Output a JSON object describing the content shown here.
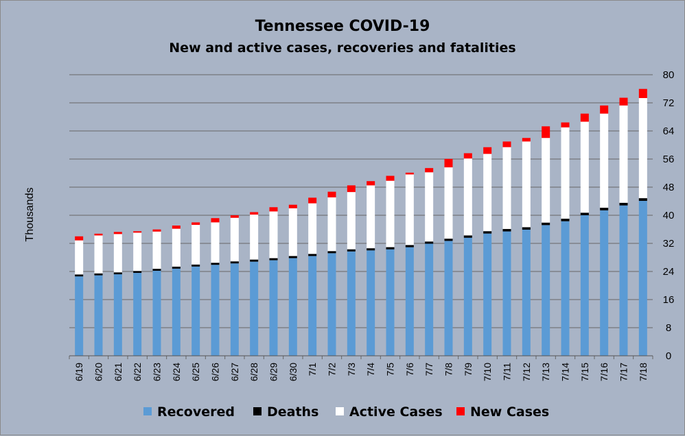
{
  "chart_data": {
    "type": "bar",
    "stacked": true,
    "title": "Tennessee COVID-19",
    "subtitle": "New and active cases, recoveries and fatalities",
    "ylabel": "Thousands",
    "ylim": [
      0,
      80
    ],
    "yticks": [
      0,
      8,
      16,
      24,
      32,
      40,
      48,
      56,
      64,
      72,
      80
    ],
    "y_axis_side": "right",
    "grid": true,
    "legend_position": "bottom",
    "categories": [
      "6/19",
      "6/20",
      "6/21",
      "6/22",
      "6/23",
      "6/24",
      "6/25",
      "6/26",
      "6/27",
      "6/28",
      "6/29",
      "6/30",
      "7/1",
      "7/2",
      "7/3",
      "7/4",
      "7/5",
      "7/6",
      "7/7",
      "7/8",
      "7/9",
      "7/10",
      "7/11",
      "7/12",
      "7/13",
      "7/14",
      "7/15",
      "7/16",
      "7/17",
      "7/18"
    ],
    "series": [
      {
        "name": "Recovered",
        "color": "#5b9bd5",
        "values": [
          22.6,
          22.9,
          23.2,
          23.6,
          24.2,
          24.8,
          25.4,
          25.9,
          26.3,
          26.8,
          27.2,
          27.8,
          28.4,
          29.2,
          29.7,
          30.0,
          30.3,
          30.9,
          31.9,
          32.7,
          33.6,
          34.8,
          35.4,
          35.9,
          37.2,
          38.3,
          40.0,
          41.4,
          42.8,
          44.1
        ]
      },
      {
        "name": "Deaths",
        "color": "#000000",
        "values": [
          0.55,
          0.55,
          0.55,
          0.55,
          0.56,
          0.57,
          0.57,
          0.58,
          0.58,
          0.59,
          0.59,
          0.59,
          0.6,
          0.6,
          0.61,
          0.61,
          0.62,
          0.62,
          0.63,
          0.64,
          0.66,
          0.67,
          0.69,
          0.7,
          0.71,
          0.72,
          0.73,
          0.74,
          0.75,
          0.76
        ]
      },
      {
        "name": "Active Cases",
        "color": "#ffffff",
        "values": [
          9.7,
          10.8,
          10.9,
          10.9,
          10.6,
          10.8,
          11.3,
          11.5,
          12.4,
          12.8,
          13.3,
          13.6,
          14.4,
          15.3,
          16.3,
          17.9,
          18.9,
          20.1,
          19.7,
          20.3,
          21.9,
          22.0,
          23.3,
          24.4,
          24.1,
          26.0,
          25.9,
          26.8,
          27.7,
          28.5
        ]
      },
      {
        "name": "New Cases",
        "color": "#ff0000",
        "values": [
          1.15,
          0.5,
          0.6,
          0.4,
          0.6,
          0.9,
          0.7,
          1.2,
          0.7,
          0.7,
          1.2,
          1.0,
          1.6,
          1.6,
          1.9,
          1.2,
          1.4,
          0.5,
          1.2,
          2.4,
          1.5,
          1.9,
          1.6,
          1.0,
          3.3,
          1.4,
          2.3,
          2.3,
          2.2,
          2.6
        ]
      }
    ]
  }
}
